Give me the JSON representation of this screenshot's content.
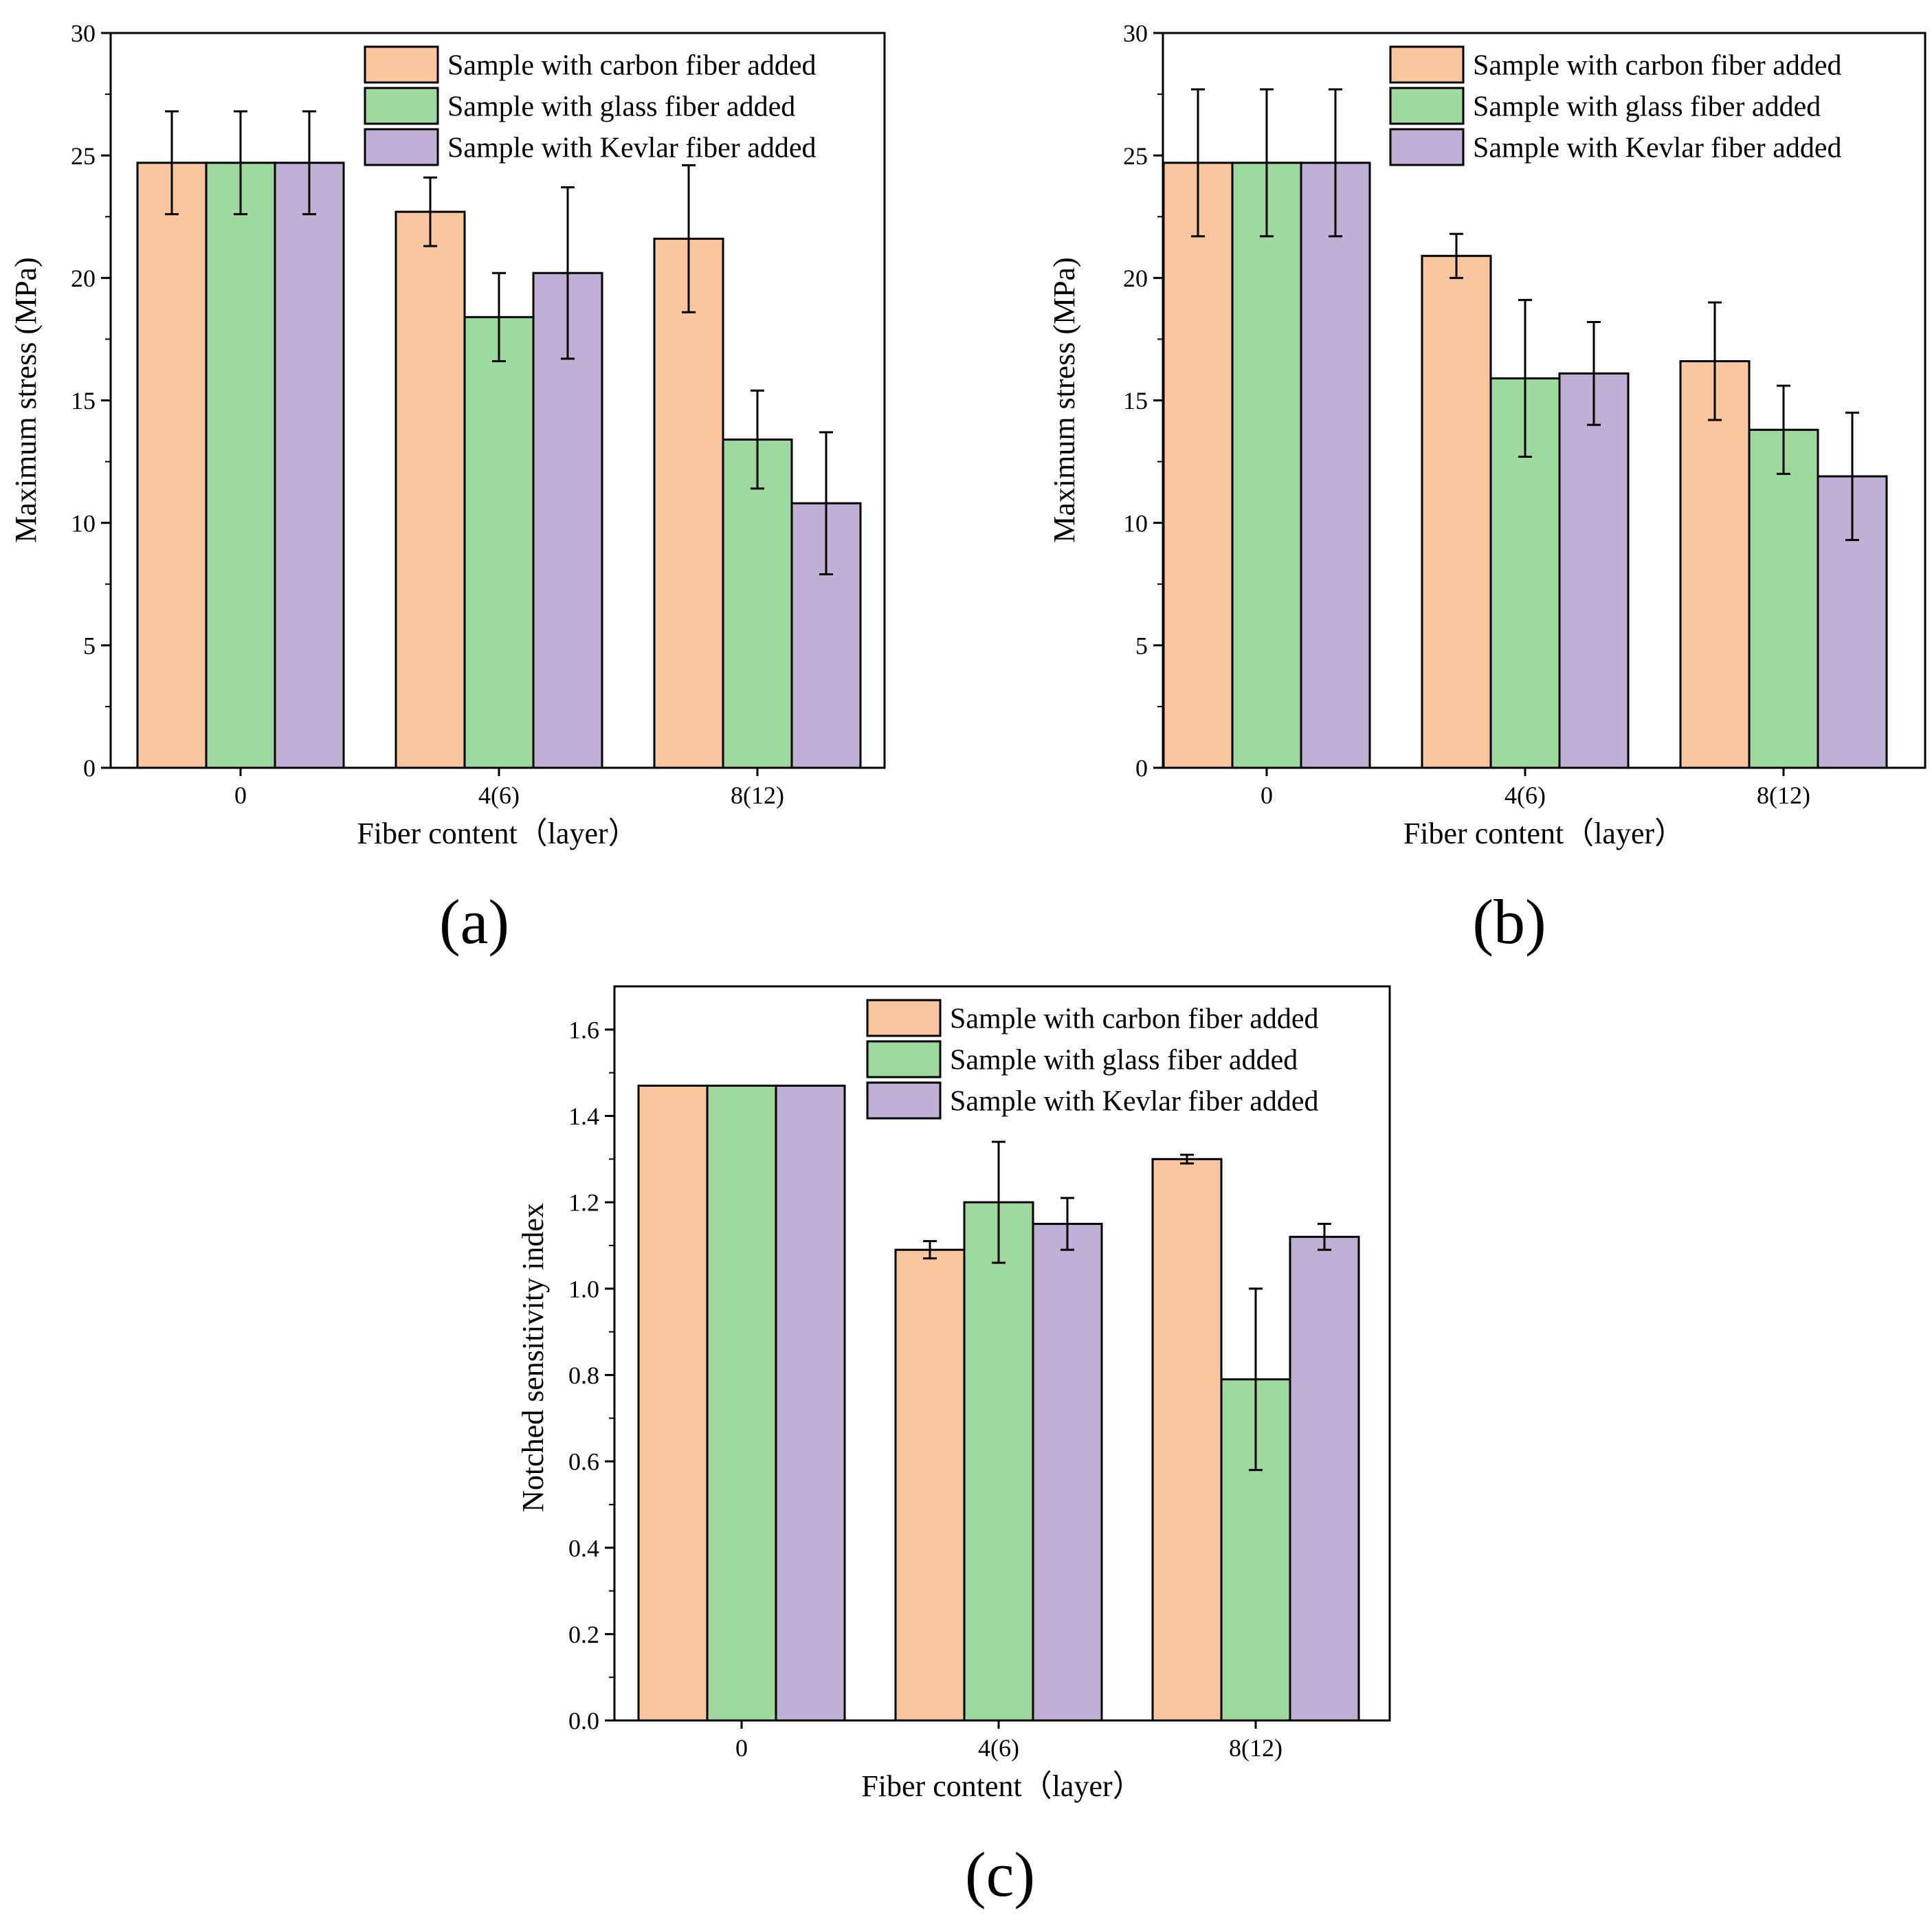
{
  "colors": {
    "carbon": "#F9C69D",
    "glass": "#9ED99E",
    "kevlar": "#C0B0D6",
    "frame": "#000000"
  },
  "chart_data": [
    {
      "panel": "(a)",
      "type": "bar",
      "categories": [
        "0",
        "4(6)",
        "8(12)"
      ],
      "xlabel": "Fiber content（layer）",
      "ylabel": "Maximum stress (MPa)",
      "ylim": [
        0,
        30
      ],
      "yticks": [
        "0",
        "5",
        "10",
        "15",
        "20",
        "25",
        "30"
      ],
      "legend_position": "top-right",
      "series": [
        {
          "name": "Sample with carbon fiber added",
          "values": [
            24.7,
            22.7,
            21.6
          ],
          "errors": [
            2.1,
            1.4,
            3.0
          ]
        },
        {
          "name": "Sample with glass fiber added",
          "values": [
            24.7,
            18.4,
            13.4
          ],
          "errors": [
            2.1,
            1.8,
            2.0
          ]
        },
        {
          "name": "Sample with Kevlar fiber added",
          "values": [
            24.7,
            20.2,
            10.8
          ],
          "errors": [
            2.1,
            3.5,
            2.9
          ]
        }
      ]
    },
    {
      "panel": "(b)",
      "type": "bar",
      "categories": [
        "0",
        "4(6)",
        "8(12)"
      ],
      "xlabel": "Fiber content（layer）",
      "ylabel": "Maximum stress (MPa)",
      "ylim": [
        0,
        30
      ],
      "yticks": [
        "0",
        "5",
        "10",
        "15",
        "20",
        "25",
        "30"
      ],
      "legend_position": "top-right",
      "series": [
        {
          "name": "Sample with carbon fiber added",
          "values": [
            24.7,
            20.9,
            16.6
          ],
          "errors": [
            3.0,
            0.9,
            2.4
          ]
        },
        {
          "name": "Sample with glass fiber added",
          "values": [
            24.7,
            15.9,
            13.8
          ],
          "errors": [
            3.0,
            3.2,
            1.8
          ]
        },
        {
          "name": "Sample with Kevlar fiber added",
          "values": [
            24.7,
            16.1,
            11.9
          ],
          "errors": [
            3.0,
            2.1,
            2.6
          ]
        }
      ]
    },
    {
      "panel": "(c)",
      "type": "bar",
      "categories": [
        "0",
        "4(6)",
        "8(12)"
      ],
      "xlabel": "Fiber content（layer）",
      "ylabel": "Notched sensitivity index",
      "ylim": [
        0,
        1.7
      ],
      "yticks": [
        "0.0",
        "0.2",
        "0.4",
        "0.6",
        "0.8",
        "1.0",
        "1.2",
        "1.4",
        "1.6"
      ],
      "legend_position": "top-right",
      "series": [
        {
          "name": "Sample with carbon fiber added",
          "values": [
            1.47,
            1.09,
            1.3
          ],
          "errors": [
            0,
            0.02,
            0.01
          ]
        },
        {
          "name": "Sample with glass fiber added",
          "values": [
            1.47,
            1.2,
            0.79
          ],
          "errors": [
            0,
            0.14,
            0.21
          ]
        },
        {
          "name": "Sample with Kevlar fiber added",
          "values": [
            1.47,
            1.15,
            1.12
          ],
          "errors": [
            0,
            0.06,
            0.03
          ]
        }
      ]
    }
  ]
}
